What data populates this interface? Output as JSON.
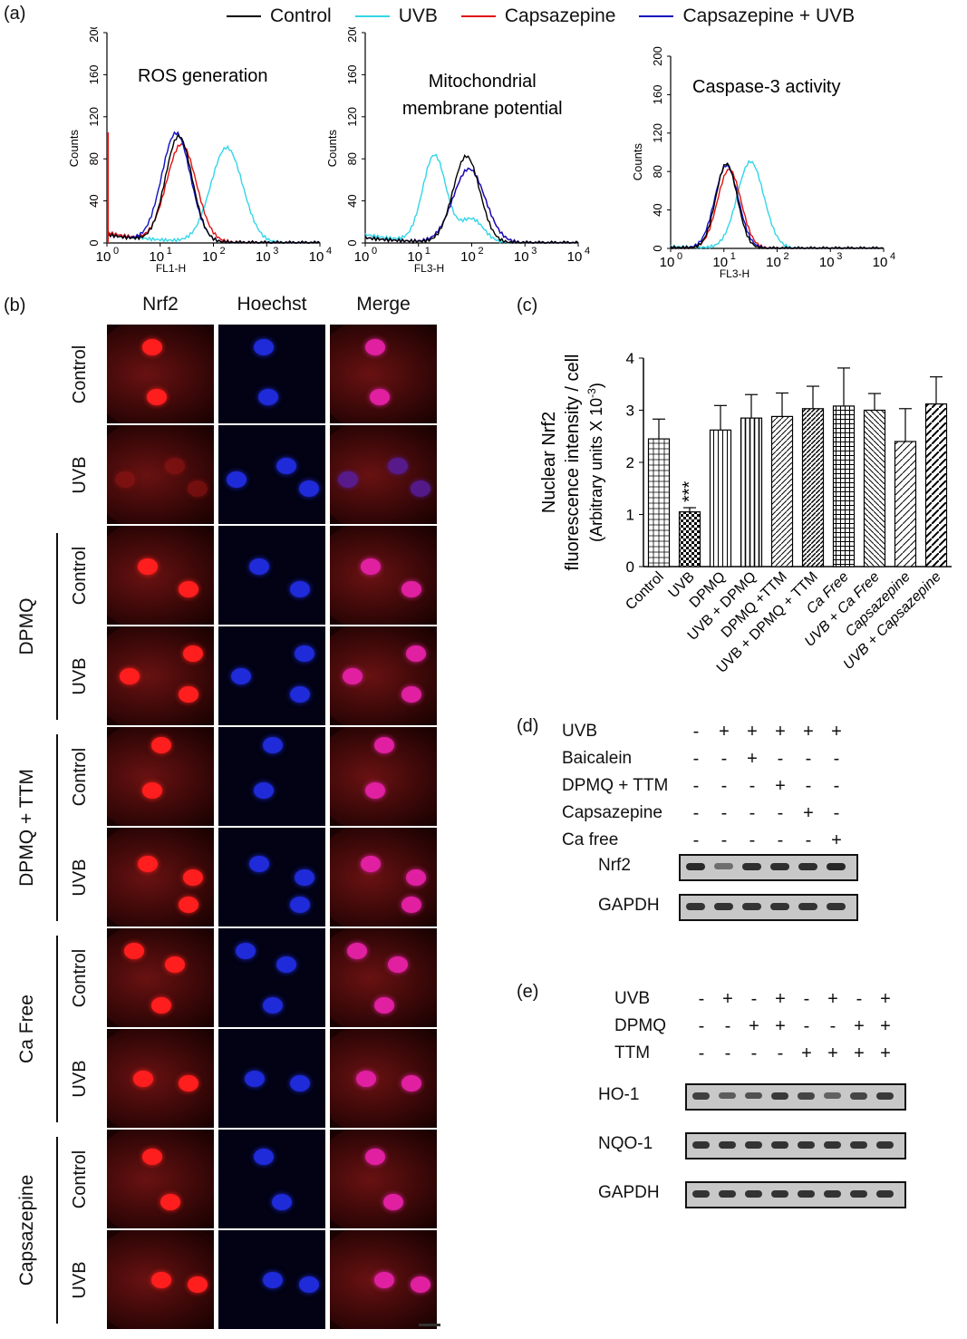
{
  "panel_labels": {
    "a": "(a)",
    "b": "(b)",
    "c": "(c)",
    "d": "(d)",
    "e": "(e)"
  },
  "legend": [
    {
      "label": "Control",
      "color": "#000000"
    },
    {
      "label": "UVB",
      "color": "#33d6e6"
    },
    {
      "label": "Capsazepine",
      "color": "#e01010"
    },
    {
      "label": "Capsazepine + UVB",
      "color": "#1010c0"
    }
  ],
  "flow": [
    {
      "title": "ROS generation",
      "xlabel": "FL1-H",
      "ylabel": "Counts",
      "yticks": [
        "0",
        "40",
        "80",
        "120",
        "160",
        "200"
      ],
      "xticks": [
        "10",
        "10",
        "10",
        "10",
        "10"
      ],
      "xexp": [
        "0",
        "1",
        "2",
        "3",
        "4"
      ]
    },
    {
      "title1": "Mitochondrial",
      "title2": "membrane  potential",
      "xlabel": "FL3-H",
      "ylabel": "Counts",
      "yticks": [
        "0",
        "40",
        "80",
        "120",
        "160",
        "200"
      ],
      "xticks": [
        "10",
        "10",
        "10",
        "10",
        "10"
      ],
      "xexp": [
        "0",
        "1",
        "2",
        "3",
        "4"
      ]
    },
    {
      "title": "Caspase-3 activity",
      "xlabel": "FL3-H",
      "ylabel": "Counts",
      "yticks": [
        "0",
        "40",
        "80",
        "120",
        "160",
        "200"
      ],
      "xticks": [
        "10",
        "10",
        "10",
        "10",
        "10"
      ],
      "xexp": [
        "0",
        "1",
        "2",
        "3",
        "4"
      ]
    }
  ],
  "micro": {
    "columns": [
      "Nrf2",
      "Hoechst",
      "Merge"
    ],
    "rows": [
      "Control",
      "UVB",
      "Control",
      "UVB",
      "Control",
      "UVB",
      "Control",
      "UVB",
      "Control",
      "UVB"
    ],
    "groups": [
      "DPMQ",
      "DPMQ + TTM",
      "Ca Free",
      "Capsazepine"
    ]
  },
  "chart_data": {
    "type": "bar",
    "ylabel_line1": "Nuclear Nrf2",
    "ylabel_line2": "fluorescence intensity / cell",
    "ylabel_line3": "(Arbitrary units X 10",
    "ylabel_exp": "-3",
    "ylabel_close": ")",
    "ylim": [
      0,
      4
    ],
    "yticks": [
      "0",
      "1",
      "2",
      "3",
      "4"
    ],
    "categories": [
      "Control",
      "UVB",
      "DPMQ",
      "UVB + DPMQ",
      "DPMQ +TTM",
      "UVB + DPMQ + TTM",
      "Ca Free",
      "UVB + Ca Free",
      "Capsazepine",
      "UVB + Capsazepine"
    ],
    "values": [
      2.45,
      1.05,
      2.62,
      2.85,
      2.88,
      3.03,
      3.08,
      3.0,
      2.4,
      3.12
    ],
    "errors": [
      0.38,
      0.08,
      0.47,
      0.45,
      0.45,
      0.43,
      0.73,
      0.32,
      0.63,
      0.52
    ],
    "significance": [
      {
        "index": 1,
        "label": "***"
      }
    ]
  },
  "western_d": {
    "conditions": [
      "UVB",
      "Baicalein",
      "DPMQ + TTM",
      "Capsazepine",
      "Ca free"
    ],
    "signs": [
      [
        "-",
        "+",
        "+",
        "+",
        "+",
        "+"
      ],
      [
        "-",
        "-",
        "+",
        "-",
        "-",
        "-"
      ],
      [
        "-",
        "-",
        "-",
        "+",
        "-",
        "-"
      ],
      [
        "-",
        "-",
        "-",
        "-",
        "+",
        "-"
      ],
      [
        "-",
        "-",
        "-",
        "-",
        "-",
        "+"
      ]
    ],
    "blots": [
      "Nrf2",
      "GAPDH"
    ],
    "nrf2_intensity": [
      0.95,
      0.35,
      0.9,
      0.9,
      0.9,
      0.95
    ]
  },
  "western_e": {
    "conditions": [
      "UVB",
      "DPMQ",
      "TTM"
    ],
    "signs": [
      [
        "-",
        "+",
        "-",
        "+",
        "-",
        "+",
        "-",
        "+"
      ],
      [
        "-",
        "-",
        "+",
        "+",
        "-",
        "-",
        "+",
        "+"
      ],
      [
        "-",
        "-",
        "-",
        "-",
        "+",
        "+",
        "+",
        "+"
      ]
    ],
    "blots": [
      "HO-1",
      "NQO-1",
      "GAPDH"
    ],
    "ho1_intensity": [
      0.75,
      0.5,
      0.6,
      0.8,
      0.7,
      0.45,
      0.7,
      0.8
    ]
  }
}
